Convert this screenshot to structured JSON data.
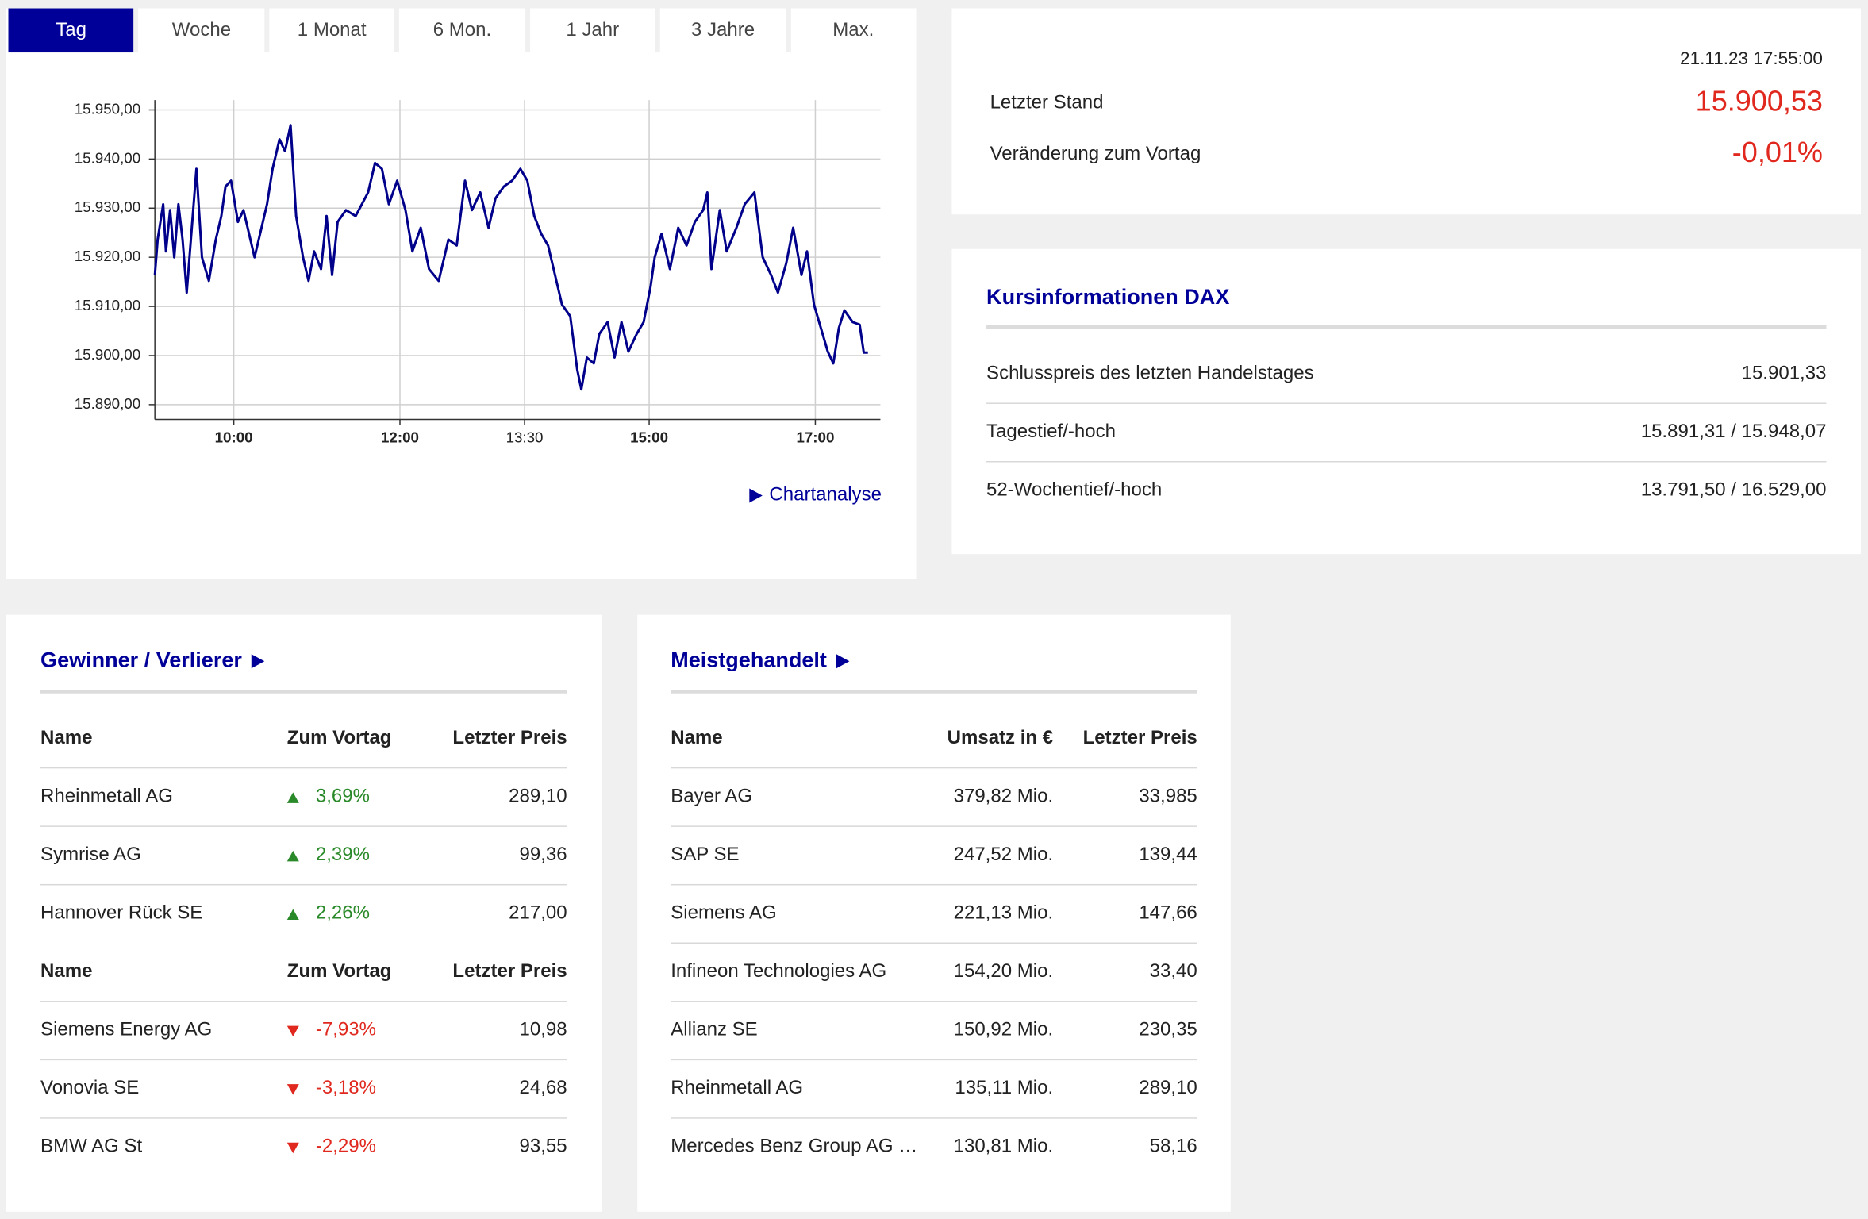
{
  "tabs": [
    "Tag",
    "Woche",
    "1 Monat",
    "6 Mon.",
    "1 Jahr",
    "3 Jahre",
    "Max."
  ],
  "chart_data": {
    "type": "line",
    "x": [
      543,
      545,
      549,
      551,
      554,
      557,
      560,
      563,
      566,
      569,
      573,
      577,
      582,
      587,
      591,
      594,
      598,
      603,
      607,
      611,
      615,
      619,
      624,
      628,
      633,
      637,
      641,
      645,
      650,
      654,
      658,
      663,
      667,
      671,
      675,
      681,
      688,
      697,
      702,
      707,
      712,
      718,
      724,
      729,
      735,
      741,
      748,
      755,
      761,
      767,
      772,
      778,
      784,
      789,
      795,
      801,
      807,
      812,
      817,
      822,
      827,
      832,
      837,
      843,
      848,
      851,
      855,
      860,
      864,
      870,
      875,
      880,
      885,
      891,
      896,
      901,
      904,
      909,
      915,
      921,
      927,
      933,
      939,
      942,
      945,
      951,
      956,
      963,
      969,
      976,
      982,
      988,
      993,
      999,
      1004,
      1010,
      1014,
      1019,
      1024,
      1029,
      1033,
      1037,
      1041,
      1047,
      1052,
      1055,
      1058
    ],
    "series": [
      {
        "color": "#00008b",
        "values": [
          15916.4,
          15923.6,
          15930.8,
          15921.2,
          15929.6,
          15920,
          15930.8,
          15923.6,
          15912.8,
          15923.6,
          15938,
          15920,
          15915.2,
          15923.6,
          15928.4,
          15934.4,
          15935.6,
          15927.2,
          15929.6,
          15924.8,
          15920,
          15924.8,
          15930.8,
          15938,
          15944,
          15941.6,
          15946.9,
          15928.4,
          15920,
          15915.2,
          15921.2,
          15917.6,
          15928.4,
          15916.4,
          15927.2,
          15929.6,
          15928.4,
          15933.2,
          15939.2,
          15938,
          15930.8,
          15935.6,
          15929.6,
          15921.2,
          15926,
          15917.6,
          15915.2,
          15923.6,
          15922.4,
          15935.6,
          15929.6,
          15933.2,
          15926,
          15932,
          15934.4,
          15935.6,
          15938,
          15935.6,
          15928.4,
          15924.8,
          15922.4,
          15916.4,
          15910.4,
          15908,
          15897.2,
          15893.1,
          15899.6,
          15898.4,
          15904.4,
          15906.8,
          15899.6,
          15906.8,
          15900.8,
          15904.4,
          15906.8,
          15914,
          15920,
          15924.8,
          15917.6,
          15926,
          15922.4,
          15927.2,
          15929.6,
          15933.2,
          15917.6,
          15929.6,
          15921.2,
          15926,
          15930.8,
          15933.2,
          15920,
          15916.4,
          15912.8,
          15918.8,
          15926,
          15916.4,
          15921.2,
          15910.4,
          15905.6,
          15900.8,
          15898.4,
          15905.6,
          15909.2,
          15906.8,
          15906.3,
          15900.6,
          15900.6
        ]
      }
    ],
    "xlim": [
      543,
      1067
    ],
    "xticks": [
      {
        "value": 600,
        "label": "10:00"
      },
      {
        "value": 720,
        "label": "12:00"
      },
      {
        "value": 810,
        "label": "13:30"
      },
      {
        "value": 900,
        "label": "15:00"
      },
      {
        "value": 1020,
        "label": "17:00"
      }
    ],
    "ylim": [
      15887,
      15952
    ],
    "yticks": [
      {
        "value": 15890,
        "label": "15.890,00"
      },
      {
        "value": 15900,
        "label": "15.900,00"
      },
      {
        "value": 15910,
        "label": "15.910,00"
      },
      {
        "value": 15920,
        "label": "15.920,00"
      },
      {
        "value": 15930,
        "label": "15.930,00"
      },
      {
        "value": 15940,
        "label": "15.940,00"
      },
      {
        "value": 15950,
        "label": "15.950,00"
      }
    ],
    "grid": true
  },
  "chart_link": "Chartanalyse",
  "quote": {
    "timestamp": "21.11.23 17:55:00",
    "last_label": "Letzter Stand",
    "last_value": "15.900,53",
    "change_label": "Veränderung zum Vortag",
    "change_value": "-0,01%"
  },
  "info": {
    "title": "Kursinformationen DAX",
    "rows": [
      [
        "Schlusspreis des letzten Handelstages",
        "15.901,33"
      ],
      [
        "Tagestief/-hoch",
        "15.891,31 / 15.948,07"
      ],
      [
        "52-Wochentief/-hoch",
        "13.791,50 / 16.529,00"
      ]
    ]
  },
  "movers": {
    "title": "Gewinner / Verlierer",
    "sections": [
      {
        "header": [
          "Name",
          "Zum Vortag",
          "Letzter Preis"
        ],
        "rows": [
          [
            "Rheinmetall AG",
            "3,69%",
            "289,10"
          ],
          [
            "Symrise AG",
            "2,39%",
            "99,36"
          ],
          [
            "Hannover Rück SE",
            "2,26%",
            "217,00"
          ]
        ]
      },
      {
        "header": [
          "Name",
          "Zum Vortag",
          "Letzter Preis"
        ],
        "rows": [
          [
            "Siemens Energy AG",
            "-7,93%",
            "10,98"
          ],
          [
            "Vonovia SE",
            "-3,18%",
            "24,68"
          ],
          [
            "BMW AG St",
            "-2,29%",
            "93,55"
          ]
        ]
      }
    ]
  },
  "most_traded": {
    "title": "Meistgehandelt",
    "header": [
      "Name",
      "Umsatz in €",
      "Letzter Preis"
    ],
    "rows": [
      [
        "Bayer AG",
        "379,82 Mio.",
        "33,985"
      ],
      [
        "SAP SE",
        "247,52 Mio.",
        "139,44"
      ],
      [
        "Siemens AG",
        "221,13 Mio.",
        "147,66"
      ],
      [
        "Infineon Technologies AG",
        "154,20 Mio.",
        "33,40"
      ],
      [
        "Allianz SE",
        "150,92 Mio.",
        "230,35"
      ],
      [
        "Rheinmetall AG",
        "135,11 Mio.",
        "289,10"
      ],
      [
        "Mercedes Benz Group AG …",
        "130,81 Mio.",
        "58,16"
      ]
    ]
  }
}
